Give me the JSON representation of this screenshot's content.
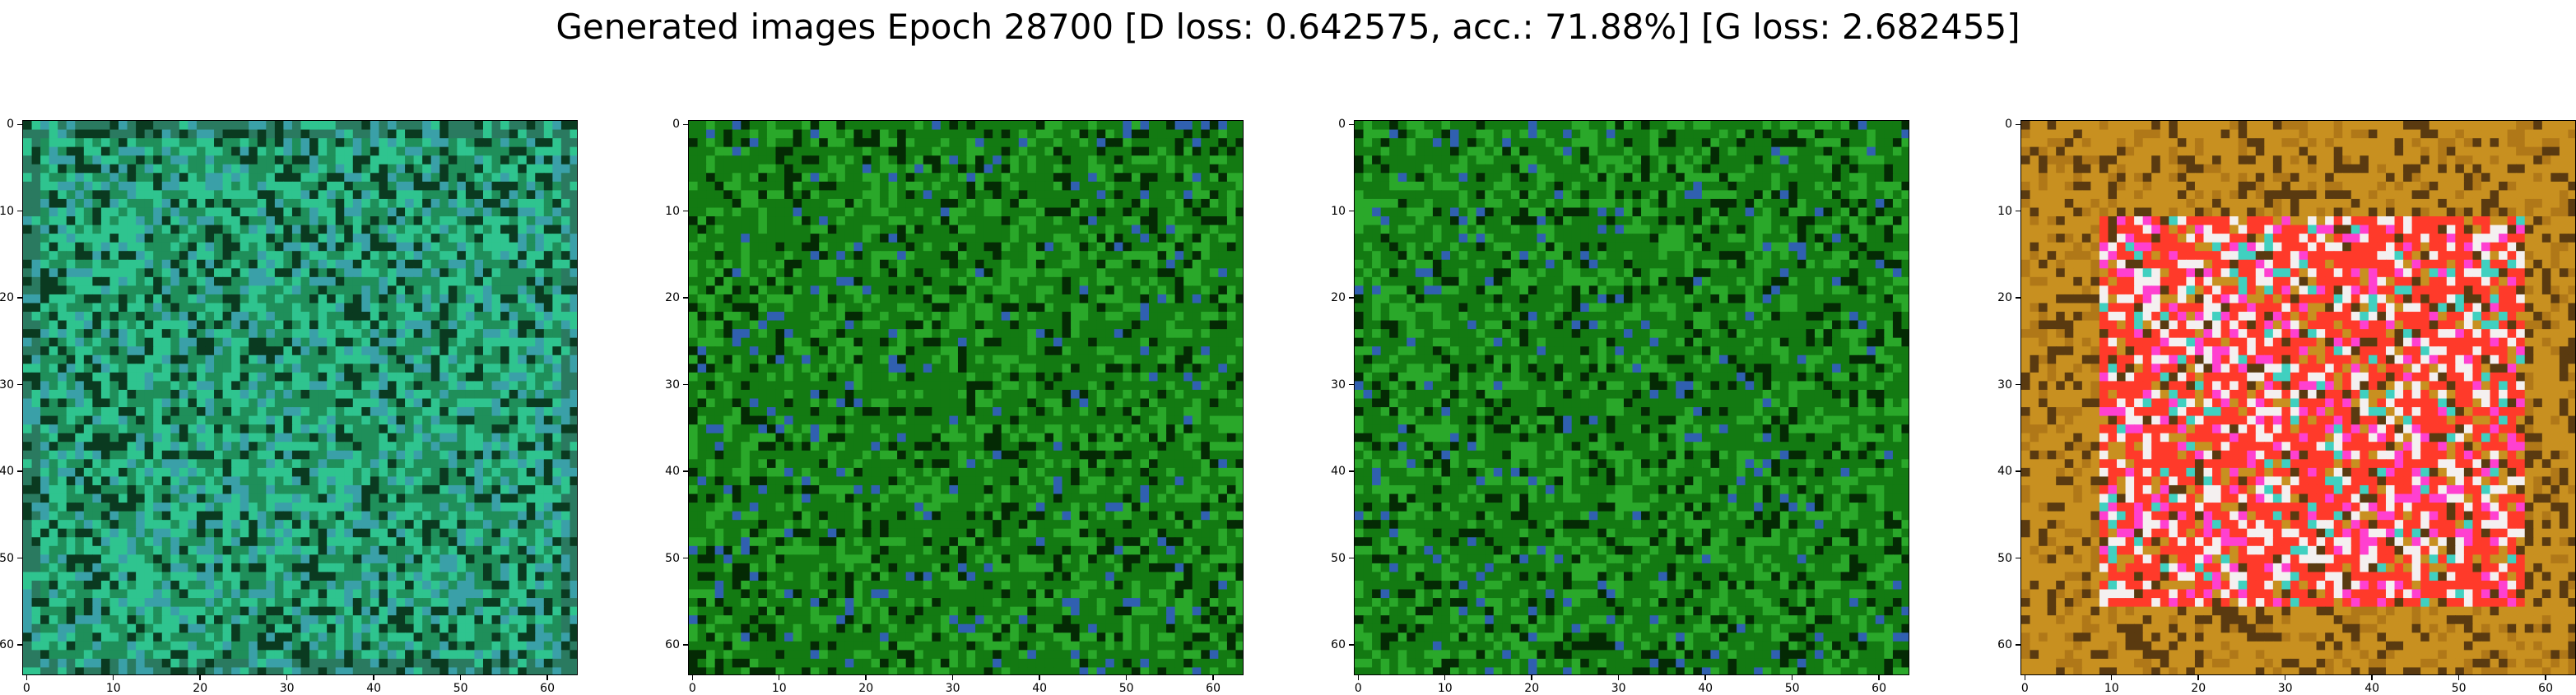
{
  "figure": {
    "title": "Generated images Epoch 28700 [D loss: 0.642575, acc.: 71.88%] [G loss: 2.682455]"
  },
  "axes": {
    "y_ticks": [
      "0",
      "10",
      "20",
      "30",
      "40",
      "50",
      "60"
    ],
    "x_ticks": [
      "0",
      "10",
      "20",
      "30",
      "40",
      "50",
      "60"
    ]
  },
  "images": [
    {
      "name": "generated-image-1",
      "palette": "teal-green",
      "colors": {
        "base": "#1f8f5a",
        "light": "#2fc48f",
        "dark": "#0a3a20",
        "accent": "#3aa0a8"
      }
    },
    {
      "name": "generated-image-2",
      "palette": "green",
      "colors": {
        "base": "#137a12",
        "light": "#2aa82a",
        "dark": "#042a04",
        "accent": "#3060b0"
      }
    },
    {
      "name": "generated-image-3",
      "palette": "green",
      "colors": {
        "base": "#137a12",
        "light": "#2aa82a",
        "dark": "#042a04",
        "accent": "#3060b0"
      }
    },
    {
      "name": "generated-image-4",
      "palette": "orange-pink",
      "colors": {
        "base": "#c89020",
        "light": "#f4f0f0",
        "dark": "#5a3a10",
        "accent": "#ff3a2a",
        "magenta": "#ff40d0",
        "cyan": "#40d0c0"
      }
    }
  ]
}
